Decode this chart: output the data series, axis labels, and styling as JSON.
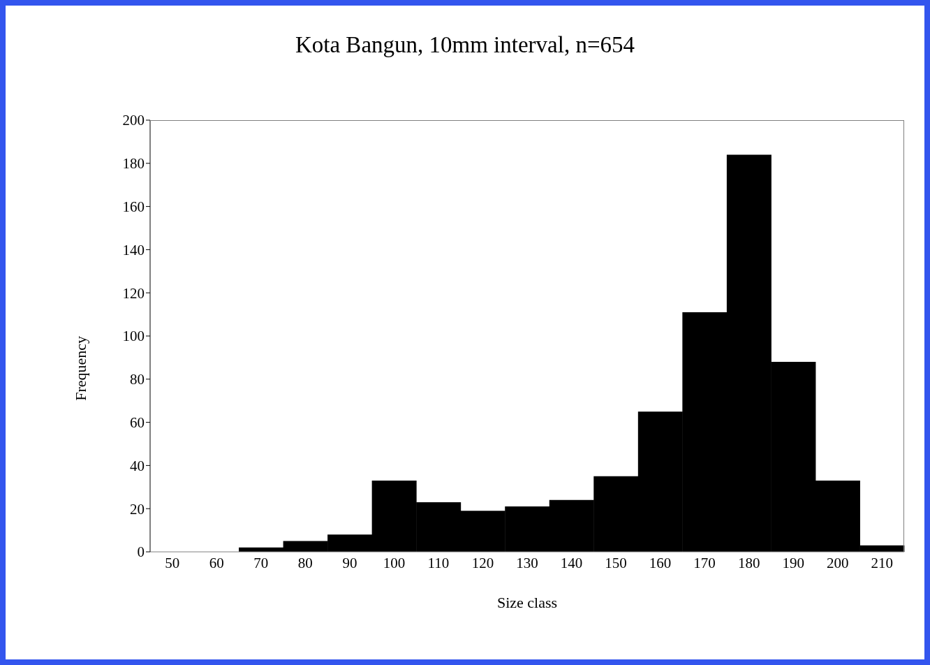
{
  "chart_data": {
    "type": "bar",
    "title": "Kota Bangun, 10mm interval, n=654",
    "xlabel": "Size class",
    "ylabel": "Frequency",
    "categories": [
      "50",
      "60",
      "70",
      "80",
      "90",
      "100",
      "110",
      "120",
      "130",
      "140",
      "150",
      "160",
      "170",
      "180",
      "190",
      "200",
      "210"
    ],
    "values": [
      0,
      0,
      2,
      5,
      8,
      33,
      23,
      19,
      21,
      24,
      35,
      65,
      111,
      184,
      88,
      33,
      3
    ],
    "color": "#000000",
    "ylim": [
      0,
      200
    ],
    "yticks": [
      0,
      20,
      40,
      60,
      80,
      100,
      120,
      140,
      160,
      180,
      200
    ],
    "grid": false
  }
}
